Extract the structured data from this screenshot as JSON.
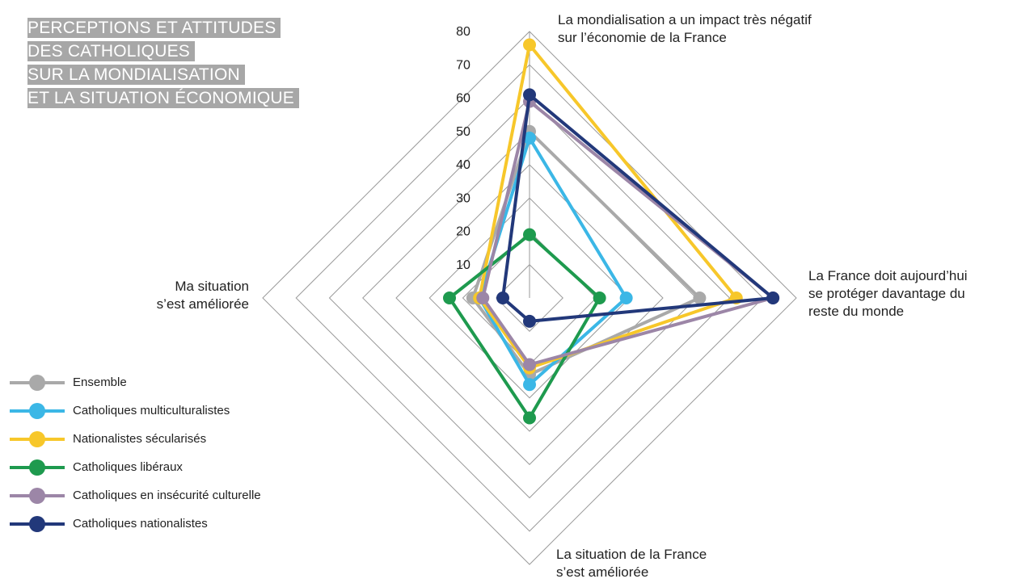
{
  "title_lines": [
    "PERCEPTIONS ET ATTITUDES",
    "DES CATHOLIQUES",
    "SUR LA MONDIALISATION",
    "ET LA SITUATION ÉCONOMIQUE"
  ],
  "chart_data": {
    "type": "radar",
    "axes": [
      "La mondialisation a un impact très négatif sur l’économie de la France",
      "La France doit aujourd’hui se protéger davantage du reste du monde",
      "La situation de la France s’est améliorée",
      "Ma situation s’est améliorée"
    ],
    "axis_label_lines": {
      "top": [
        "La mondialisation a un impact très négatif",
        "sur l’économie de la France"
      ],
      "right": [
        "La France doit aujourd’hui",
        "se protéger davantage du",
        "reste du monde"
      ],
      "bottom": [
        "La situation de la France",
        "s’est améliorée"
      ],
      "left": [
        "Ma situation",
        "s’est améliorée"
      ]
    },
    "scale": {
      "min": 0,
      "max": 80,
      "step": 10
    },
    "tick_labels": [
      "10",
      "20",
      "30",
      "40",
      "50",
      "60",
      "70",
      "80"
    ],
    "grid": true,
    "legend_position": "left",
    "series": [
      {
        "name": "Ensemble",
        "color": "#a9a9a9",
        "values": [
          50,
          51,
          23,
          17
        ]
      },
      {
        "name": "Catholiques multiculturalistes",
        "color": "#3bb7e6",
        "values": [
          48,
          29,
          26,
          15
        ]
      },
      {
        "name": "Nationalistes sécularisés",
        "color": "#f7c72a",
        "values": [
          76,
          62,
          21,
          15
        ]
      },
      {
        "name": "Catholiques libéraux",
        "color": "#1e9a4e",
        "values": [
          19,
          21,
          36,
          24
        ]
      },
      {
        "name": "Catholiques en insécurité culturelle",
        "color": "#9c86a7",
        "values": [
          59,
          73,
          20,
          14
        ]
      },
      {
        "name": "Catholiques nationalistes",
        "color": "#22387a",
        "values": [
          61,
          73,
          7,
          8
        ]
      }
    ]
  }
}
